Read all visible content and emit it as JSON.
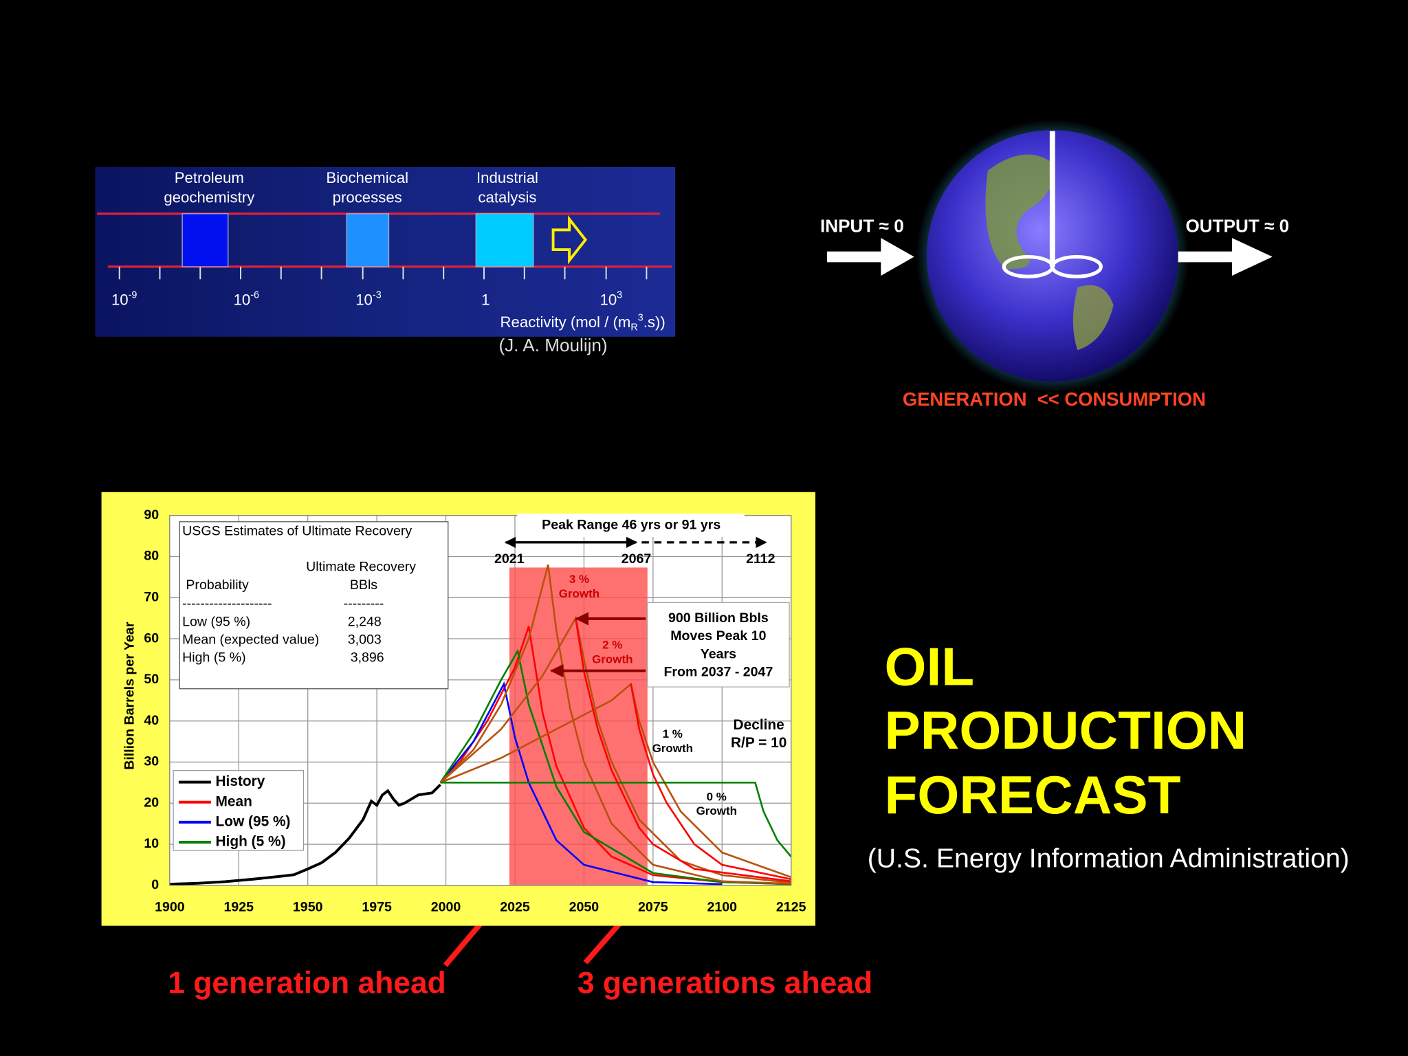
{
  "reactivity": {
    "processes": [
      {
        "lines": [
          "Petroleum",
          "geochemistry"
        ]
      },
      {
        "lines": [
          "Biochemical",
          "processes"
        ]
      },
      {
        "lines": [
          "Industrial",
          "catalysis"
        ]
      }
    ],
    "ticks": [
      {
        "base": "10",
        "exp": "-9"
      },
      {
        "base": "10",
        "exp": "-6"
      },
      {
        "base": "10",
        "exp": "-3"
      },
      {
        "base": "1"
      },
      {
        "base": "10",
        "exp": "3"
      }
    ],
    "axis_label": {
      "text": "Reactivity (mol / (m",
      "sub": "R",
      "sup": "3",
      "end": ".s))"
    },
    "credit": "(J. A. Moulijn)"
  },
  "earth": {
    "input": "INPUT ≈ 0",
    "output": "OUTPUT ≈ 0",
    "caption": "GENERATION  << CONSUMPTION"
  },
  "title": {
    "lines": [
      "OIL",
      "PRODUCTION",
      "FORECAST"
    ]
  },
  "source": "(U.S. Energy Information Administration)",
  "callouts": [
    "1 generation ahead",
    "3 generations ahead"
  ],
  "chart_data": {
    "type": "line",
    "ylabel": "Billion Barrels per Year",
    "xlim": [
      1900,
      2125
    ],
    "ylim": [
      0,
      90
    ],
    "xticks": [
      1900,
      1925,
      1950,
      1975,
      2000,
      2025,
      2050,
      2075,
      2100,
      2125
    ],
    "yticks": [
      0,
      10,
      20,
      30,
      40,
      50,
      60,
      70,
      80,
      90
    ],
    "grid": true,
    "highlight": {
      "xrange": [
        2023,
        2073
      ],
      "color": "#ff4d4d"
    },
    "series": [
      {
        "name": "History",
        "color": "#000000",
        "x": [
          1900,
          1910,
          1920,
          1930,
          1940,
          1945,
          1950,
          1955,
          1960,
          1965,
          1970,
          1973,
          1975,
          1977,
          1979,
          1981,
          1983,
          1985,
          1990,
          1995,
          1998
        ],
        "values": [
          0.3,
          0.5,
          0.9,
          1.5,
          2.2,
          2.6,
          4,
          5.5,
          8,
          11.5,
          16,
          20.5,
          19.5,
          22,
          23,
          21,
          19.5,
          20,
          22,
          22.5,
          24.5
        ]
      },
      {
        "name": "Mean",
        "color": "#ff0000",
        "x": [
          1998,
          2005,
          2015,
          2025,
          2030,
          2035,
          2040,
          2050,
          2060,
          2075,
          2100,
          2125
        ],
        "values": [
          25,
          30,
          40,
          53,
          63,
          42,
          29,
          14,
          7,
          2.5,
          0.8,
          0.3
        ]
      },
      {
        "name": "Low (95 %)",
        "color": "#0000ff",
        "x": [
          1998,
          2010,
          2021,
          2025,
          2030,
          2040,
          2050,
          2075,
          2100
        ],
        "values": [
          25,
          35,
          49,
          36,
          25,
          11,
          5,
          0.8,
          0.3
        ]
      },
      {
        "name": "High (5 %)",
        "color": "#008000",
        "x": [
          1998,
          2010,
          2020,
          2026,
          2030,
          2040,
          2050,
          2075,
          2100,
          2125
        ],
        "values": [
          25,
          37,
          50,
          57,
          44,
          24,
          13,
          3,
          0.8,
          0.3
        ]
      },
      {
        "color": "#b8520c",
        "x": [
          1998,
          2010,
          2020,
          2030,
          2037,
          2040,
          2045,
          2050,
          2060,
          2075,
          2100,
          2125
        ],
        "values": [
          25,
          33,
          44,
          60,
          78,
          62,
          43,
          30,
          15,
          5,
          1,
          0.4
        ]
      },
      {
        "color": "#b8520c",
        "x": [
          1998,
          2020,
          2035,
          2047,
          2050,
          2055,
          2060,
          2070,
          2085,
          2100,
          2125
        ],
        "values": [
          25,
          38,
          51,
          65,
          55,
          40,
          30,
          16,
          6,
          2.5,
          0.6
        ]
      },
      {
        "color": "#b8520c",
        "x": [
          1998,
          2020,
          2040,
          2060,
          2067,
          2070,
          2075,
          2085,
          2100,
          2125
        ],
        "values": [
          25,
          31,
          38,
          45,
          49,
          40,
          30,
          18,
          8,
          2
        ]
      },
      {
        "color": "#008000",
        "x": [
          1998,
          2050,
          2100,
          2112,
          2115,
          2120,
          2125
        ],
        "values": [
          25,
          25,
          25,
          25,
          18,
          11,
          7
        ]
      },
      {
        "color": "#ff0000",
        "x": [
          2047,
          2050,
          2055,
          2060,
          2070,
          2075,
          2090,
          2125
        ],
        "values": [
          65,
          52,
          38,
          28,
          14,
          10,
          4,
          1
        ]
      },
      {
        "color": "#ff0000",
        "x": [
          2067,
          2070,
          2075,
          2080,
          2090,
          2100,
          2125
        ],
        "values": [
          49,
          38,
          27,
          20,
          10,
          5,
          1.5
        ]
      }
    ],
    "usgs_box": {
      "title": "USGS Estimates of Ultimate Recovery",
      "col1": "Probability",
      "col2": [
        "Ultimate Recovery",
        "BBls"
      ],
      "rule": [
        "--------------------",
        "---------"
      ],
      "rows": [
        [
          "Low (95 %)",
          "2,248"
        ],
        [
          "Mean (expected value)",
          "3,003"
        ],
        [
          "High (5 %)",
          "3,896"
        ]
      ]
    },
    "peak_range": {
      "label": "Peak Range 46 yrs or 91 yrs",
      "years": [
        2021,
        2067,
        2112
      ]
    },
    "notes": {
      "growth3": [
        "3 %",
        "Growth"
      ],
      "growth2": [
        "2 %",
        "Growth"
      ],
      "growth1": [
        "1 %",
        "Growth"
      ],
      "growth0": [
        "0 %",
        "Growth"
      ],
      "decline": [
        "Decline",
        "R/P = 10"
      ],
      "box": [
        "900 Billion Bbls",
        "Moves Peak 10",
        "Years",
        "From 2037 - 2047"
      ]
    }
  }
}
